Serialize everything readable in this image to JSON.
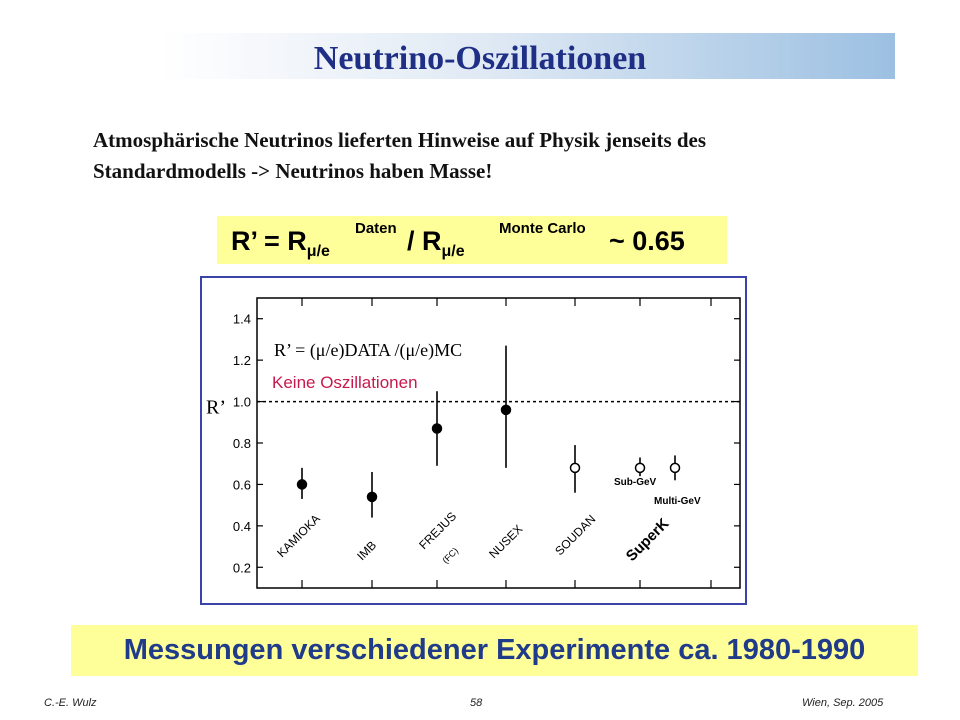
{
  "slide": {
    "title": "Neutrino-Oszillationen",
    "intro_line1": "Atmosphärische Neutrinos lieferten Hinweise auf Physik jenseits des",
    "intro_line2": "Standardmodells -> Neutrinos haben Masse!",
    "formula": {
      "part1": "R’ = R",
      "sub": "μ/e",
      "sup1": "Daten",
      "part2": " / R",
      "sup2": "Monte Carlo",
      "part3": " ~ 0.65"
    },
    "conclusion": "Messungen verschiedener Experimente ca. 1980-1990",
    "footer_left": "C.-E. Wulz",
    "footer_center": "58",
    "footer_right": "Wien, Sep. 2005"
  },
  "colors": {
    "title": "#1f2f86",
    "conclusion": "#1f3b8a",
    "highlight": "#ffff99",
    "frame": "#3c43a8",
    "annotation": "#c8194e"
  },
  "chart_data": {
    "type": "scatter",
    "ylabel": "R’",
    "ylim": [
      0.1,
      1.5
    ],
    "yticks": [
      "0.2",
      "0.4",
      "0.6",
      "0.8",
      "1.0",
      "1.2",
      "1.4"
    ],
    "reference_line": 1.0,
    "formula_label": "R’ = (μ/e)DATA /(μ/e)MC",
    "annotation": "Keine Oszillationen",
    "experiments": [
      "KAMIOKA",
      "IMB",
      "FREJUS",
      "NUSEX",
      "SOUDAN",
      "SuperK"
    ],
    "experiment_note": "(FC)",
    "superk_labels": [
      "Sub-GeV",
      "Multi-GeV"
    ],
    "points": [
      {
        "experiment": "KAMIOKA",
        "y": 0.6,
        "low": 0.53,
        "high": 0.68,
        "marker": "filled"
      },
      {
        "experiment": "IMB",
        "y": 0.54,
        "low": 0.44,
        "high": 0.66,
        "marker": "filled"
      },
      {
        "experiment": "FREJUS",
        "y": 0.87,
        "low": 0.69,
        "high": 1.05,
        "marker": "filled"
      },
      {
        "experiment": "NUSEX",
        "y": 0.96,
        "low": 0.68,
        "high": 1.27,
        "marker": "filled"
      },
      {
        "experiment": "SOUDAN",
        "y": 0.68,
        "low": 0.56,
        "high": 0.79,
        "marker": "open"
      },
      {
        "experiment": "SuperK Sub-GeV",
        "y": 0.68,
        "low": 0.64,
        "high": 0.73,
        "marker": "open"
      },
      {
        "experiment": "SuperK Multi-GeV",
        "y": 0.68,
        "low": 0.62,
        "high": 0.74,
        "marker": "open"
      }
    ]
  }
}
